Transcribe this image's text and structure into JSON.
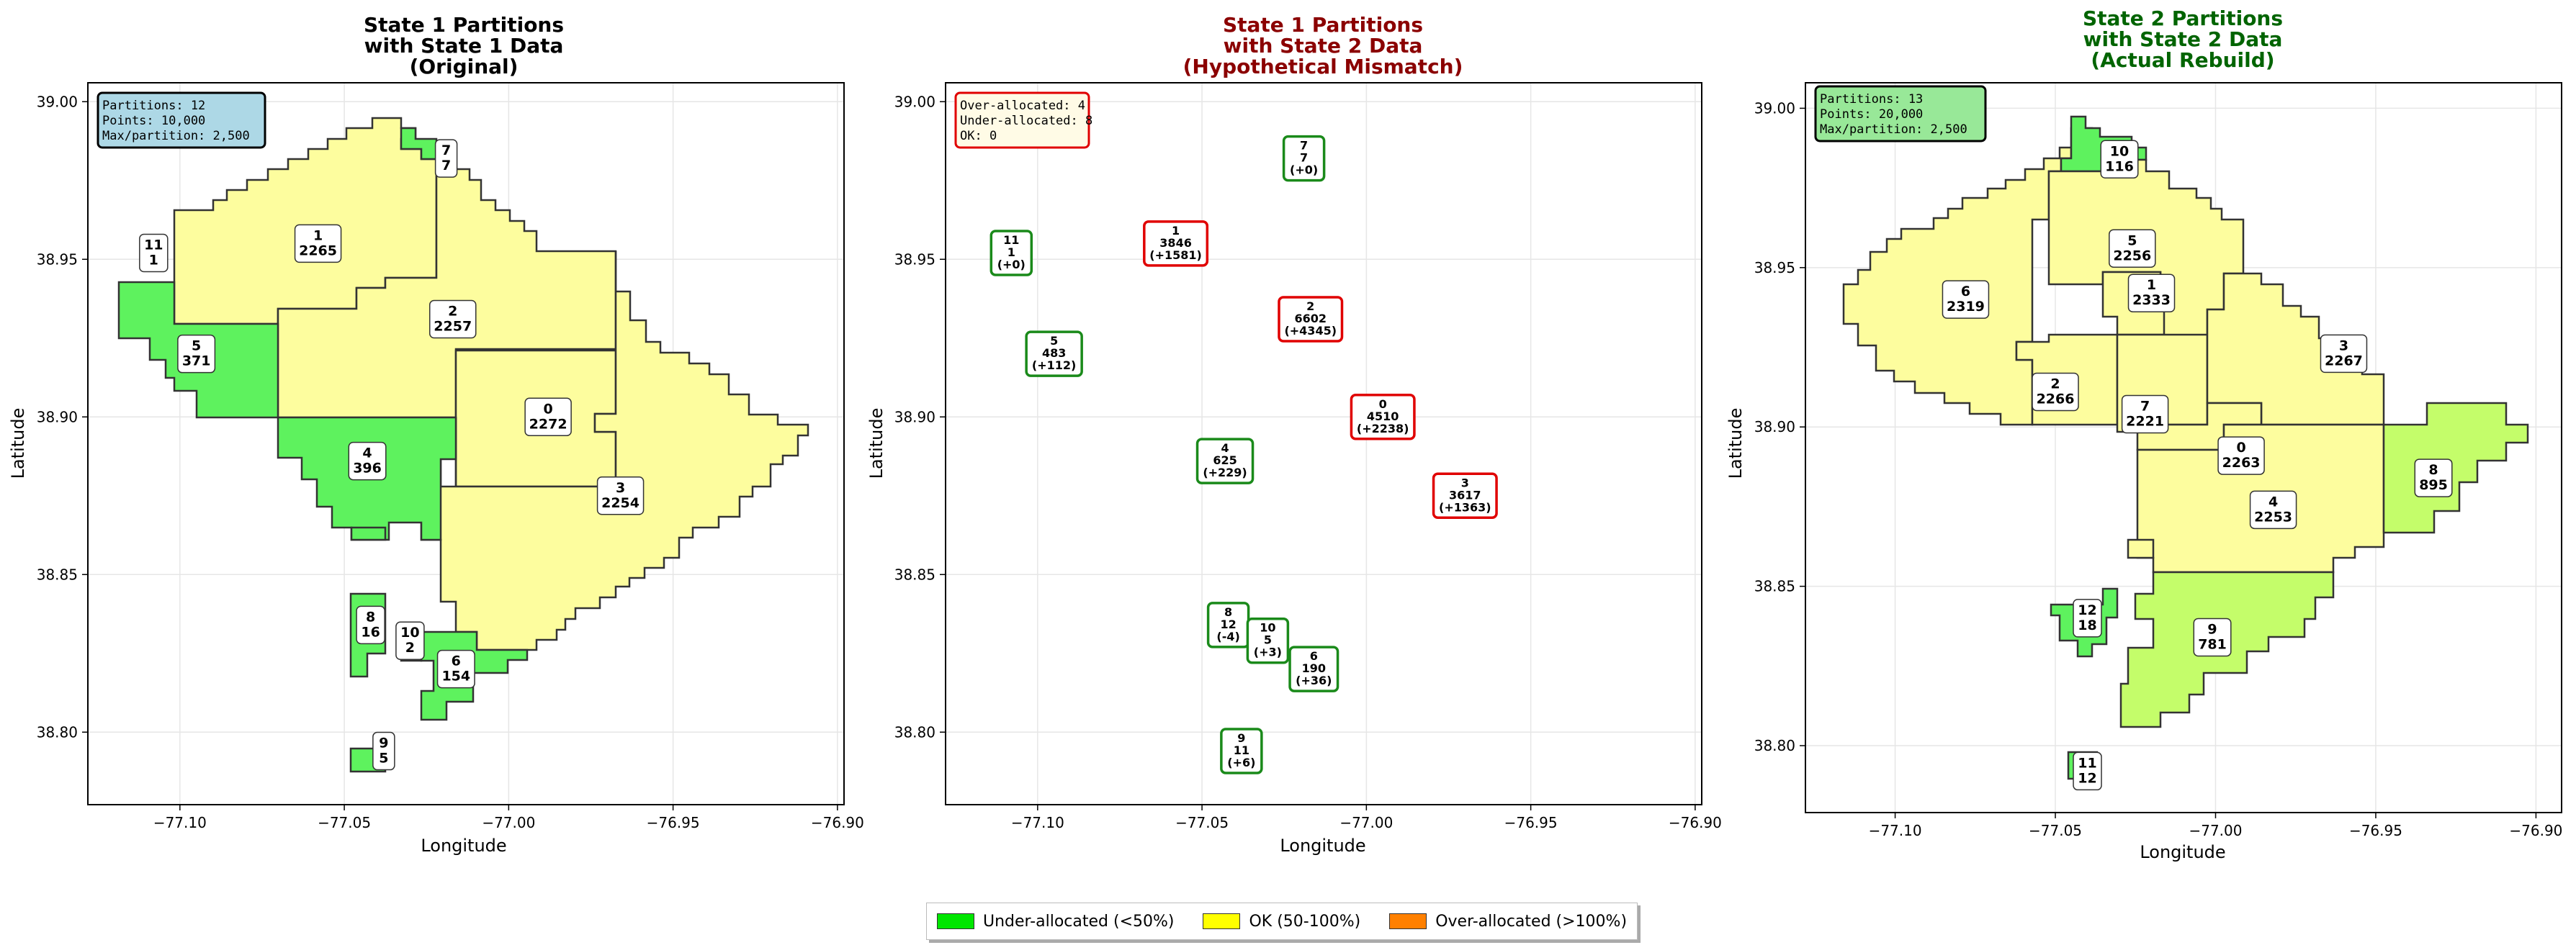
{
  "chart_data": [
    {
      "type": "map",
      "title": "State 1 Partitions\nwith State 1 Data\n(Original)",
      "title_color": "#000000",
      "xlabel": "Longitude",
      "ylabel": "Latitude",
      "xlim": [
        -77.128,
        -76.898
      ],
      "ylim": [
        38.777,
        39.006
      ],
      "xticks": [
        -77.1,
        -77.05,
        -77.0,
        -76.95,
        -76.9
      ],
      "xtick_labels": [
        "−77.10",
        "−77.05",
        "−77.00",
        "−76.95",
        "−76.90"
      ],
      "yticks": [
        38.8,
        38.85,
        38.9,
        38.95,
        39.0
      ],
      "ytick_labels": [
        "38.80",
        "38.85",
        "38.90",
        "38.95",
        "39.00"
      ],
      "info_lines": [
        "Partitions: 12",
        "Points: 10,000",
        "Max/partition: 2,500"
      ],
      "info_bg": "#add8e6",
      "partitions": [
        {
          "id": "0",
          "count": "2272",
          "status": "ok",
          "label_lon": -76.988,
          "label_lat": 38.9
        },
        {
          "id": "1",
          "count": "2265",
          "status": "ok",
          "label_lon": -77.058,
          "label_lat": 38.955
        },
        {
          "id": "2",
          "count": "2257",
          "status": "ok",
          "label_lon": -77.017,
          "label_lat": 38.931
        },
        {
          "id": "3",
          "count": "2254",
          "status": "ok",
          "label_lon": -76.966,
          "label_lat": 38.875
        },
        {
          "id": "4",
          "count": "396",
          "status": "under",
          "label_lon": -77.043,
          "label_lat": 38.886
        },
        {
          "id": "5",
          "count": "371",
          "status": "under",
          "label_lon": -77.095,
          "label_lat": 38.92
        },
        {
          "id": "6",
          "count": "154",
          "status": "under",
          "label_lon": -77.016,
          "label_lat": 38.82
        },
        {
          "id": "7",
          "count": "7",
          "status": "under",
          "label_lon": -77.019,
          "label_lat": 38.982
        },
        {
          "id": "8",
          "count": "16",
          "status": "under",
          "label_lon": -77.042,
          "label_lat": 38.834
        },
        {
          "id": "9",
          "count": "5",
          "status": "under",
          "label_lon": -77.038,
          "label_lat": 38.794
        },
        {
          "id": "10",
          "count": "2",
          "status": "under",
          "label_lon": -77.03,
          "label_lat": 38.829
        },
        {
          "id": "11",
          "count": "1",
          "status": "under",
          "label_lon": -77.108,
          "label_lat": 38.952
        }
      ]
    },
    {
      "type": "map",
      "title": "State 1 Partitions\nwith State 2 Data\n(Hypothetical Mismatch)",
      "title_color": "#8b0000",
      "xlabel": "Longitude",
      "ylabel": "Latitude",
      "xlim": [
        -77.128,
        -76.898
      ],
      "ylim": [
        38.777,
        39.006
      ],
      "xticks": [
        -77.1,
        -77.05,
        -77.0,
        -76.95,
        -76.9
      ],
      "xtick_labels": [
        "−77.10",
        "−77.05",
        "−77.00",
        "−76.95",
        "−76.90"
      ],
      "yticks": [
        38.8,
        38.85,
        38.9,
        38.95,
        39.0
      ],
      "ytick_labels": [
        "38.80",
        "38.85",
        "38.90",
        "38.95",
        "39.00"
      ],
      "info_lines": [
        "Over-allocated: 4",
        "Under-allocated: 8",
        "OK: 0"
      ],
      "info_bg": "#fffbe6",
      "partitions": [
        {
          "id": "0",
          "count": "4510",
          "delta": "(+2238)",
          "status": "over",
          "label_lon": -76.995,
          "label_lat": 38.9
        },
        {
          "id": "1",
          "count": "3846",
          "delta": "(+1581)",
          "status": "over",
          "label_lon": -77.058,
          "label_lat": 38.955
        },
        {
          "id": "2",
          "count": "6602",
          "delta": "(+4345)",
          "status": "over",
          "label_lon": -77.017,
          "label_lat": 38.931
        },
        {
          "id": "3",
          "count": "3617",
          "delta": "(+1363)",
          "status": "over",
          "label_lon": -76.97,
          "label_lat": 38.875
        },
        {
          "id": "4",
          "count": "625",
          "delta": "(+229)",
          "status": "under",
          "label_lon": -77.043,
          "label_lat": 38.886
        },
        {
          "id": "5",
          "count": "483",
          "delta": "(+112)",
          "status": "under",
          "label_lon": -77.095,
          "label_lat": 38.92
        },
        {
          "id": "6",
          "count": "190",
          "delta": "(+36)",
          "status": "under",
          "label_lon": -77.016,
          "label_lat": 38.82
        },
        {
          "id": "7",
          "count": "7",
          "delta": "(+0)",
          "status": "under",
          "label_lon": -77.019,
          "label_lat": 38.982
        },
        {
          "id": "8",
          "count": "12",
          "delta": "(-4)",
          "status": "under",
          "label_lon": -77.042,
          "label_lat": 38.834
        },
        {
          "id": "9",
          "count": "11",
          "delta": "(+6)",
          "status": "under",
          "label_lon": -77.038,
          "label_lat": 38.794
        },
        {
          "id": "10",
          "count": "5",
          "delta": "(+3)",
          "status": "under",
          "label_lon": -77.03,
          "label_lat": 38.829
        },
        {
          "id": "11",
          "count": "1",
          "delta": "(+0)",
          "status": "under",
          "label_lon": -77.108,
          "label_lat": 38.952
        }
      ]
    },
    {
      "type": "map",
      "title": "State 2 Partitions\nwith State 2 Data\n(Actual Rebuild)",
      "title_color": "#006400",
      "xlabel": "Longitude",
      "ylabel": "Latitude",
      "xlim": [
        -77.128,
        -76.892
      ],
      "ylim": [
        38.779,
        39.008
      ],
      "xticks": [
        -77.1,
        -77.05,
        -77.0,
        -76.95,
        -76.9
      ],
      "xtick_labels": [
        "−77.10",
        "−77.05",
        "−77.00",
        "−76.95",
        "−76.90"
      ],
      "yticks": [
        38.8,
        38.85,
        38.9,
        38.95,
        39.0
      ],
      "ytick_labels": [
        "38.80",
        "38.85",
        "38.90",
        "38.95",
        "39.00"
      ],
      "info_lines": [
        "Partitions: 13",
        "Points: 20,000",
        "Max/partition: 2,500"
      ],
      "info_bg": "#98e898",
      "partitions": [
        {
          "id": "0",
          "count": "2263",
          "status": "ok",
          "label_lon": -76.992,
          "label_lat": 38.891
        },
        {
          "id": "1",
          "count": "2333",
          "status": "ok",
          "label_lon": -77.02,
          "label_lat": 38.942
        },
        {
          "id": "2",
          "count": "2266",
          "status": "ok",
          "label_lon": -77.05,
          "label_lat": 38.911
        },
        {
          "id": "3",
          "count": "2267",
          "status": "ok",
          "label_lon": -76.96,
          "label_lat": 38.923
        },
        {
          "id": "4",
          "count": "2253",
          "status": "ok",
          "label_lon": -76.982,
          "label_lat": 38.874
        },
        {
          "id": "5",
          "count": "2256",
          "status": "ok",
          "label_lon": -77.026,
          "label_lat": 38.956
        },
        {
          "id": "6",
          "count": "2319",
          "status": "ok",
          "label_lon": -77.078,
          "label_lat": 38.94
        },
        {
          "id": "7",
          "count": "2221",
          "status": "ok",
          "label_lon": -77.022,
          "label_lat": 38.904
        },
        {
          "id": "8",
          "count": "895",
          "status": "low",
          "label_lon": -76.932,
          "label_lat": 38.884
        },
        {
          "id": "9",
          "count": "781",
          "status": "low",
          "label_lon": -77.001,
          "label_lat": 38.834
        },
        {
          "id": "10",
          "count": "116",
          "status": "under",
          "label_lon": -77.03,
          "label_lat": 38.984
        },
        {
          "id": "11",
          "count": "12",
          "status": "under",
          "label_lon": -77.04,
          "label_lat": 38.792
        },
        {
          "id": "12",
          "count": "18",
          "status": "under",
          "label_lon": -77.04,
          "label_lat": 38.84
        }
      ]
    }
  ],
  "colors": {
    "under": "#5ef25e",
    "ok": "#fdfd9e",
    "over": "#fd9e3a",
    "over1": "#fdd66a",
    "low": "#c4fd6a"
  },
  "legend": {
    "items": [
      {
        "label": "Under-allocated (<50%)",
        "color": "#00e600"
      },
      {
        "label": "OK (50-100%)",
        "color": "#ffff00"
      },
      {
        "label": "Over-allocated (>100%)",
        "color": "#ff8000"
      }
    ]
  }
}
